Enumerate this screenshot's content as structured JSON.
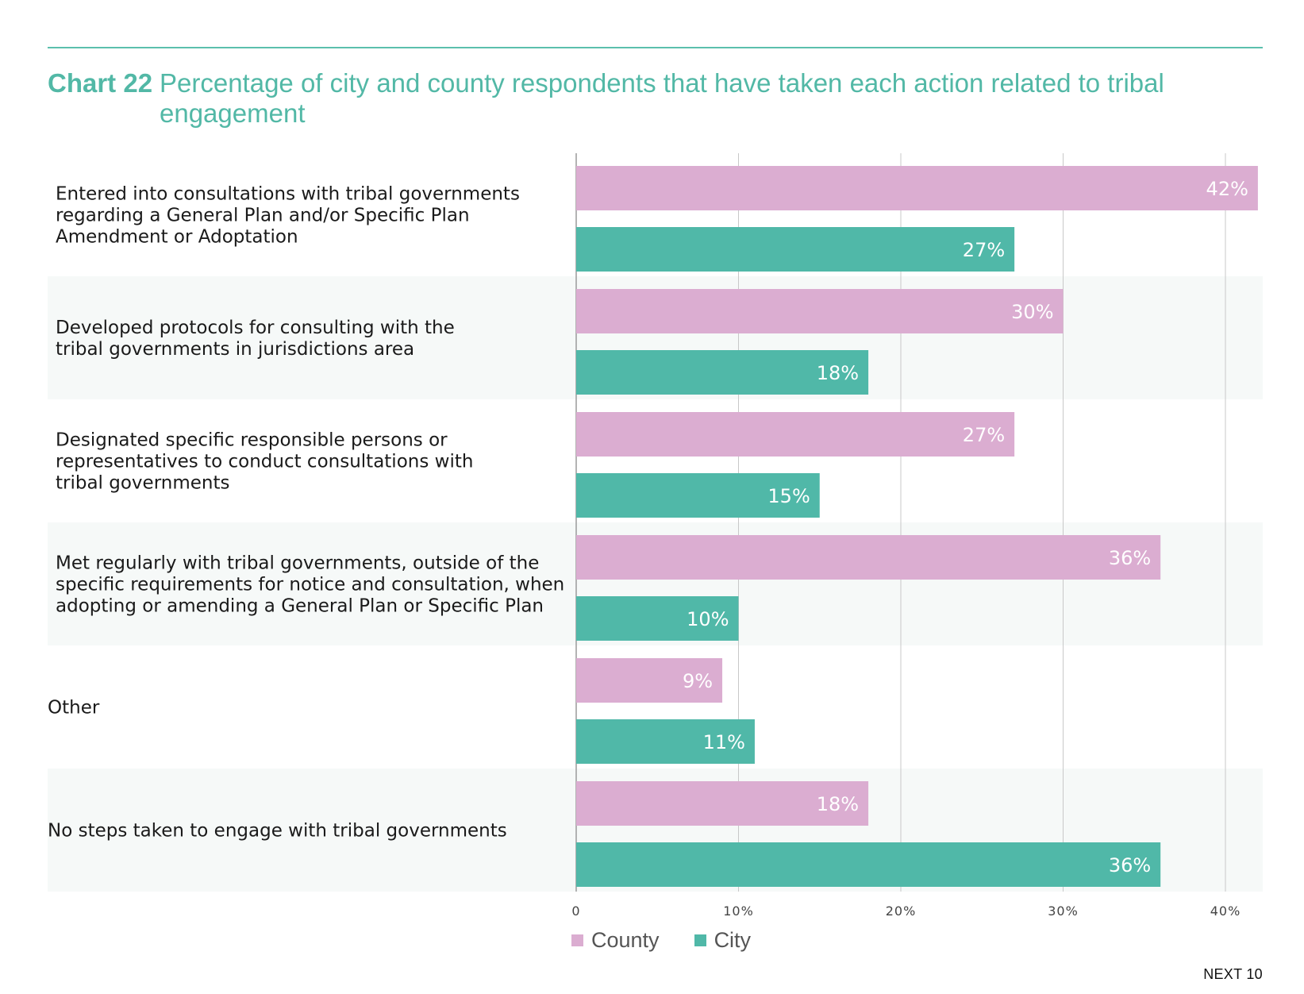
{
  "header": {
    "chart_number": "Chart 22",
    "title": "Percentage of city and county respondents that have taken each action related to tribal engagement"
  },
  "footer": {
    "brand": "NEXT 10"
  },
  "colors": {
    "county": "#dbadd1",
    "city": "#50b8a8",
    "accent": "#52b8a6",
    "band": "#f6f9f8",
    "grid": "#c8c8c8"
  },
  "chart_data": {
    "type": "bar",
    "orientation": "horizontal",
    "categories": [
      [
        "Entered into consultations with tribal governments",
        "regarding a General Plan and/or Specific Plan",
        "Amendment or Adoptation"
      ],
      [
        "Developed protocols for consulting with the",
        "tribal governments in jurisdictions area"
      ],
      [
        "Designated specific responsible persons or",
        "representatives to conduct consultations with",
        "tribal governments"
      ],
      [
        "Met regularly with tribal governments, outside of the",
        "specific requirements for notice and consultation, when",
        "adopting or amending a General Plan or Specific Plan"
      ],
      [
        "Other"
      ],
      [
        "No steps taken to engage with tribal governments"
      ]
    ],
    "series": [
      {
        "name": "County",
        "values": [
          42,
          30,
          27,
          36,
          9,
          18
        ],
        "labels": [
          "42%",
          "30%",
          "27%",
          "36%",
          "9%",
          "18%"
        ]
      },
      {
        "name": "City",
        "values": [
          27,
          18,
          15,
          10,
          11,
          36
        ],
        "labels": [
          "27%",
          "18%",
          "15%",
          "10%",
          "11%",
          "36%"
        ]
      }
    ],
    "xlim": [
      0,
      42
    ],
    "xticks": [
      0,
      10,
      20,
      30,
      40
    ],
    "xtick_labels": [
      "0",
      "10%",
      "20%",
      "30%",
      "40%"
    ],
    "grid": true,
    "legend_position": "bottom"
  }
}
